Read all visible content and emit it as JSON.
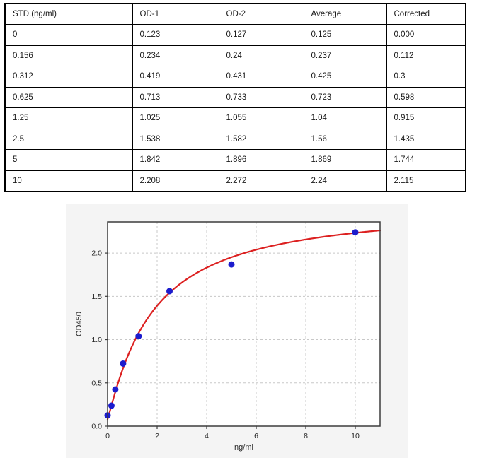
{
  "table": {
    "headers": [
      "STD.(ng/ml)",
      "OD-1",
      "OD-2",
      "Average",
      "Corrected"
    ],
    "rows": [
      [
        "0",
        "0.123",
        "0.127",
        "0.125",
        "0.000"
      ],
      [
        "0.156",
        "0.234",
        "0.24",
        "0.237",
        "0.112"
      ],
      [
        "0.312",
        "0.419",
        "0.431",
        "0.425",
        "0.3"
      ],
      [
        "0.625",
        "0.713",
        "0.733",
        "0.723",
        "0.598"
      ],
      [
        "1.25",
        "1.025",
        "1.055",
        "1.04",
        "0.915"
      ],
      [
        "2.5",
        "1.538",
        "1.582",
        "1.56",
        "1.435"
      ],
      [
        "5",
        "1.842",
        "1.896",
        "1.869",
        "1.744"
      ],
      [
        "10",
        "2.208",
        "2.272",
        "2.24",
        "2.115"
      ]
    ]
  },
  "chart_data": {
    "type": "scatter",
    "title": "",
    "xlabel": "ng/ml",
    "ylabel": "OD450",
    "xlim": [
      0,
      11
    ],
    "ylim": [
      0,
      2.36
    ],
    "xticks": [
      0,
      2,
      4,
      6,
      8,
      10
    ],
    "xtick_labels": [
      "0",
      "2",
      "4",
      "6",
      "8",
      "10"
    ],
    "yticks": [
      0,
      0.5,
      1,
      1.5,
      2
    ],
    "ytick_labels": [
      "0.0",
      "0.5",
      "1.0",
      "1.5",
      "2.0"
    ],
    "grid": true,
    "legend": "none",
    "series": [
      {
        "name": "standard points",
        "type": "scatter",
        "x": [
          0,
          0.156,
          0.312,
          0.625,
          1.25,
          2.5,
          5,
          10
        ],
        "y": [
          0.125,
          0.237,
          0.425,
          0.723,
          1.04,
          1.56,
          1.869,
          2.24
        ],
        "color": "#1c1ccd",
        "marker_radius": 4.5
      },
      {
        "name": "4PL fit curve",
        "type": "line",
        "fit": {
          "model": "4PL",
          "a": 0.08,
          "b": 1.1,
          "c": 1.8,
          "d": 2.56
        },
        "x_range": [
          0,
          11
        ],
        "color": "#dc2020",
        "line_width": 2.2
      }
    ],
    "colors": {
      "figure_bg": "#f4f4f4",
      "plot_bg": "#ffffff",
      "spine": "#3c3c3c",
      "grid": "#c8c8c8",
      "tick_text": "#262626"
    }
  }
}
